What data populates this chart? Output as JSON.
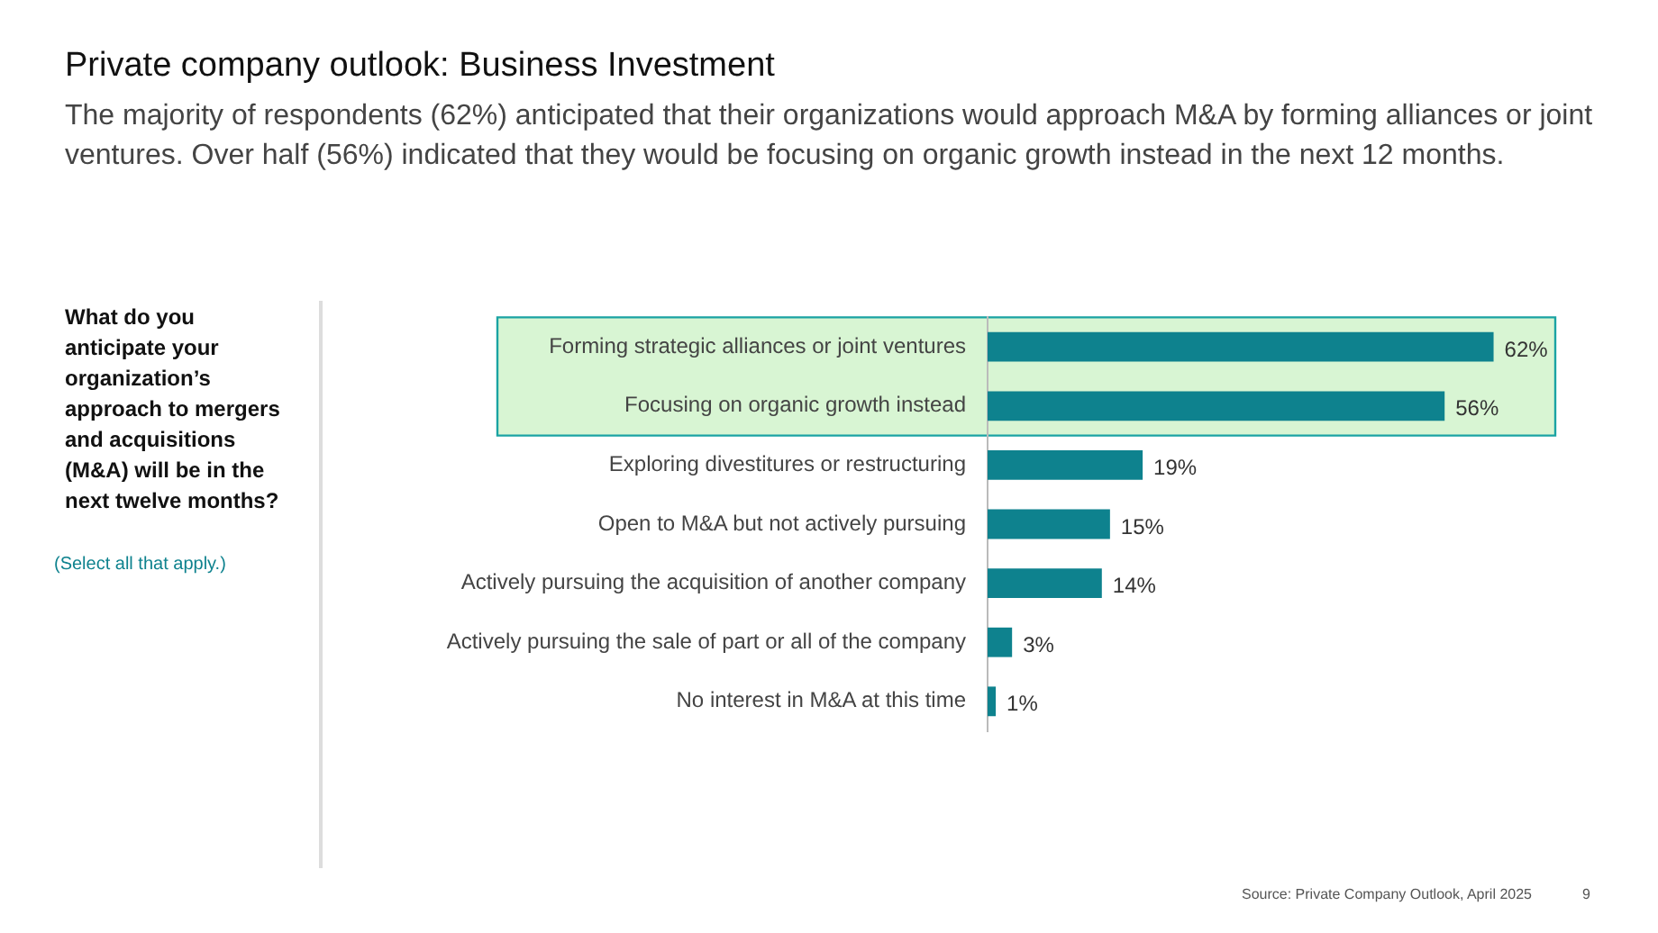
{
  "chart_data": {
    "type": "bar",
    "orientation": "horizontal",
    "title": "Private company outlook: Business Investment",
    "subtitle": "The majority of respondents (62%) anticipated that their organizations would approach M&A by forming alliances or joint ventures. Over half (56%) indicated that they would be focusing on organic growth instead in the next 12 months.",
    "categories": [
      "Forming strategic alliances or joint ventures",
      "Focusing on organic growth instead",
      "Exploring divestitures or restructuring",
      "Open to M&A but not actively pursuing",
      "Actively pursuing the acquisition of another company",
      "Actively pursuing the sale of part or all of the company",
      "No interest in M&A at this time"
    ],
    "values": [
      62,
      56,
      19,
      15,
      14,
      3,
      1
    ],
    "value_labels": [
      "62%",
      "56%",
      "19%",
      "15%",
      "14%",
      "3%",
      "1%"
    ],
    "color": "#0e828e",
    "bands": [
      {
        "axis": "y",
        "from": "Forming strategic alliances or joint ventures",
        "to": "Focusing on organic growth instead",
        "color": "#d8f5d3"
      }
    ],
    "annotations": [
      "What do you anticipate your organization’s approach to mergers and acquisitions (M&A) will be in the next twelve months?",
      "(Select all that apply.)",
      "Source: Private Company Outlook, April 2025",
      "9"
    ],
    "tick_labels": "y",
    "grid": false,
    "legend": false
  }
}
